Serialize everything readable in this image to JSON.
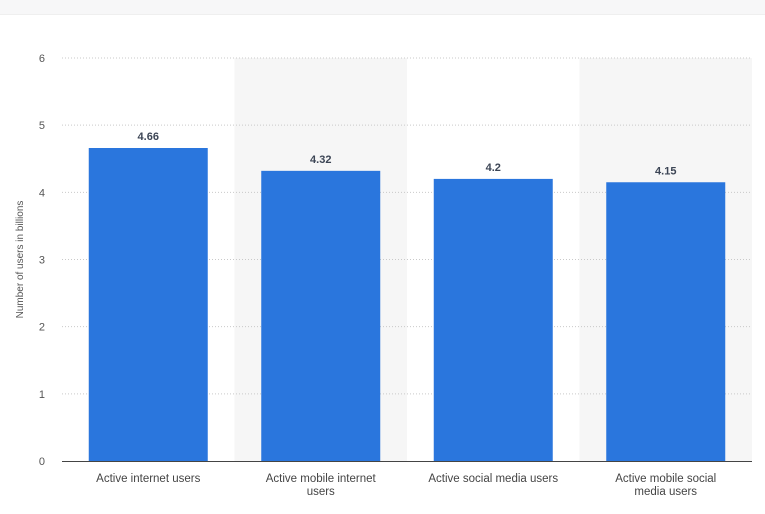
{
  "chart_data": {
    "type": "bar",
    "categories": [
      "Active internet users",
      "Active mobile internet users",
      "Active social media users",
      "Active mobile social media users"
    ],
    "values": [
      4.66,
      4.32,
      4.2,
      4.15
    ],
    "value_labels": [
      "4.66",
      "4.32",
      "4.2",
      "4.15"
    ],
    "title": "",
    "xlabel": "",
    "ylabel": "Number of users in billions",
    "ylim": [
      0,
      6
    ],
    "yticks": [
      0,
      1,
      2,
      3,
      4,
      5,
      6
    ],
    "grid": true,
    "bar_color": "#2a76dd",
    "alt_band_color": "#f6f6f6"
  }
}
